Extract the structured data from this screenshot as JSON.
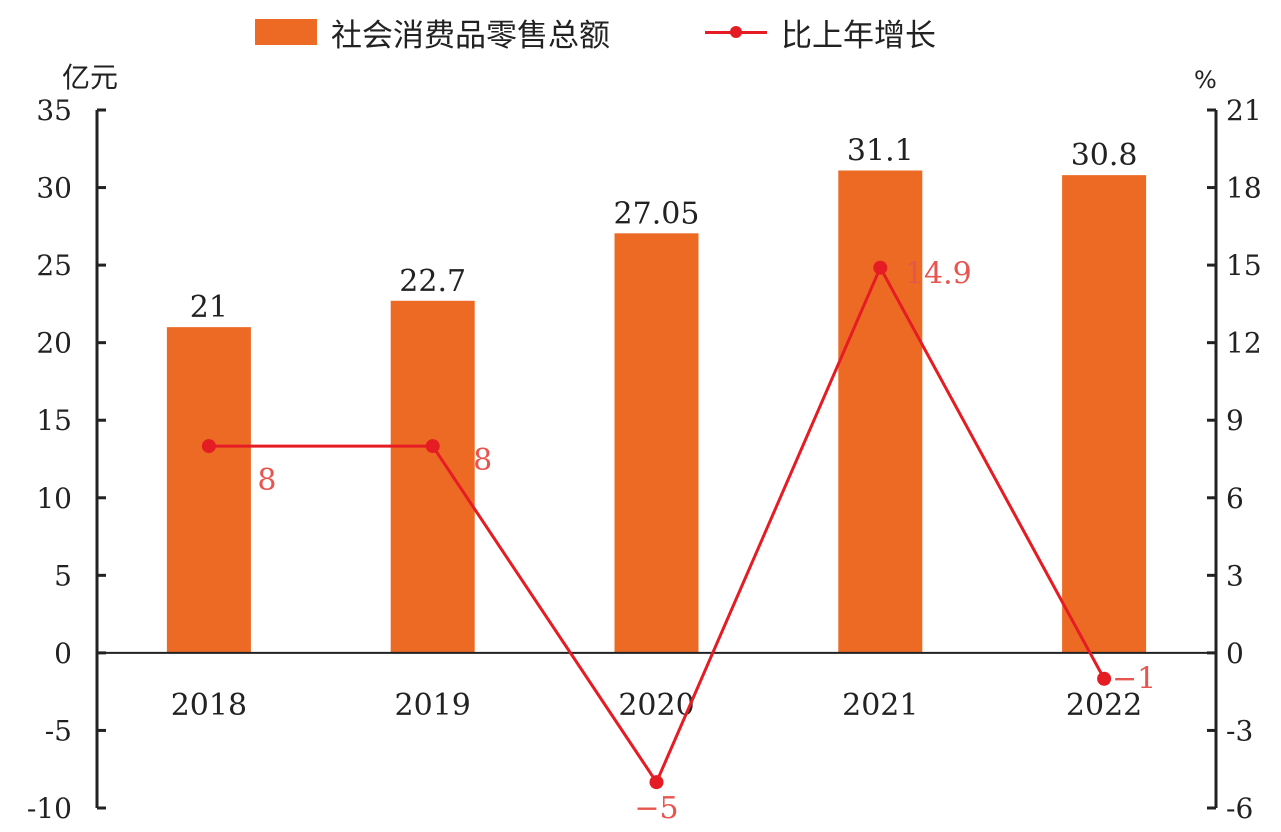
{
  "chart_data": {
    "type": "bar+line",
    "categories": [
      "2018",
      "2019",
      "2020",
      "2021",
      "2022"
    ],
    "series": [
      {
        "name": "社会消费品零售总额",
        "type": "bar",
        "axis": "left",
        "values": [
          21,
          22.7,
          27.05,
          31.1,
          30.8
        ],
        "labels": [
          "21",
          "22.7",
          "27.05",
          "31.1",
          "30.8"
        ],
        "color": "#ec6a24"
      },
      {
        "name": "比上年增长",
        "type": "line",
        "axis": "right",
        "values": [
          8,
          8,
          -5,
          14.9,
          -1
        ],
        "labels": [
          "8",
          "8",
          "−5",
          "14.9",
          "−1"
        ],
        "color": "#e51c23"
      }
    ],
    "left_axis": {
      "unit": "亿元",
      "ylim": [
        -10,
        35
      ],
      "ticks": [
        "-10",
        "-5",
        "0",
        "5",
        "10",
        "15",
        "20",
        "25",
        "30",
        "35"
      ]
    },
    "right_axis": {
      "unit": "%",
      "ylim": [
        -6,
        21
      ],
      "ticks": [
        "-6",
        "-3",
        "0",
        "3",
        "6",
        "9",
        "12",
        "15",
        "18",
        "21"
      ]
    },
    "grid": false,
    "legend_position": "top"
  }
}
